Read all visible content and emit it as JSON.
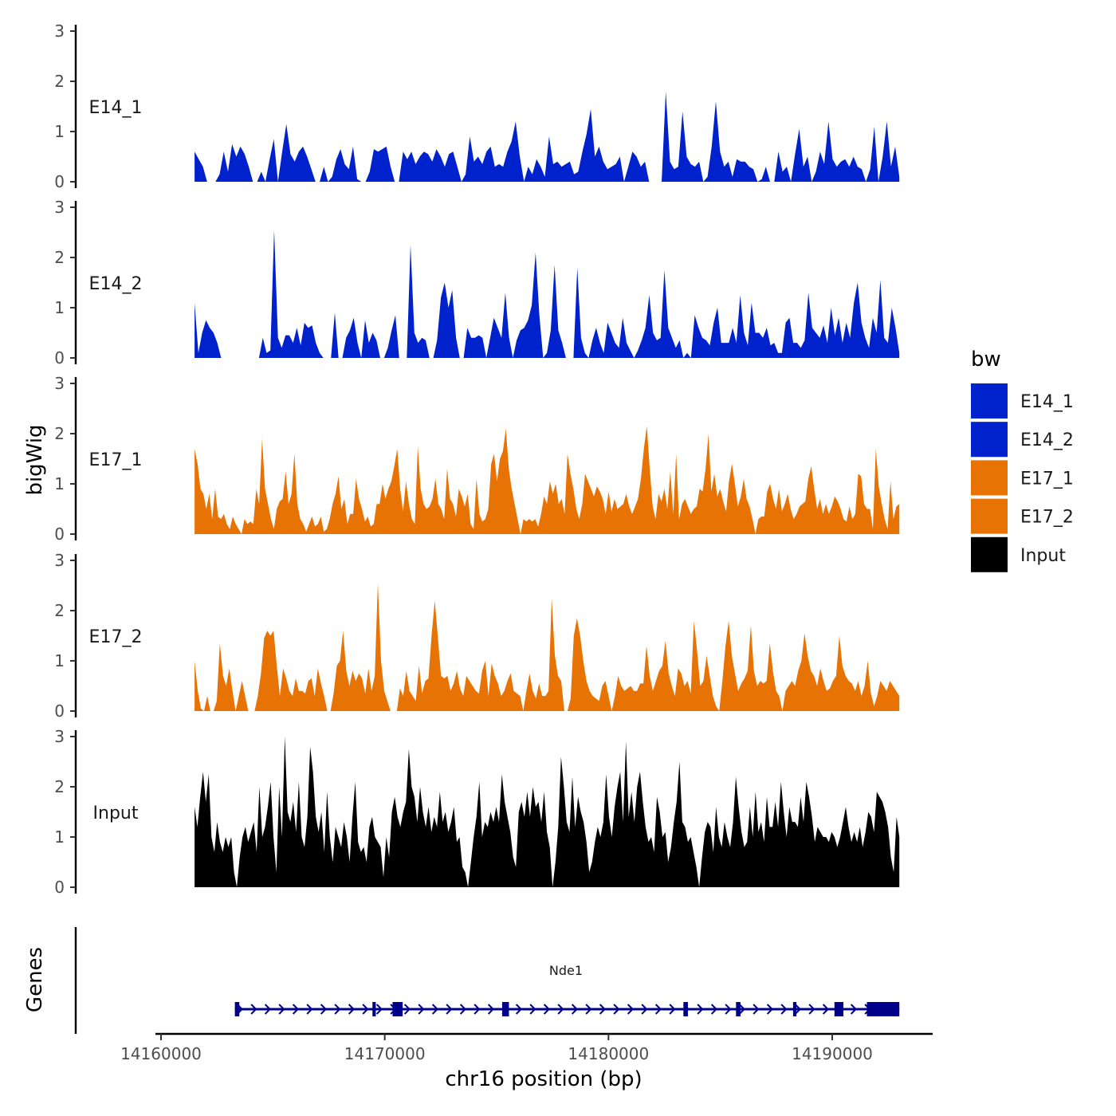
{
  "chart_data": {
    "type": "area",
    "y_axis_title": "bigWig",
    "x_axis_title": "chr16 position (bp)",
    "x_ticks": [
      14160000,
      14170000,
      14180000,
      14190000
    ],
    "x_tick_labels": [
      "14160000",
      "14170000",
      "14180000",
      "14190000"
    ],
    "y_ticks": [
      0,
      1,
      2,
      3
    ],
    "y_tick_labels": [
      "0",
      "1",
      "2",
      "3"
    ],
    "ylim": [
      0,
      3
    ],
    "legend": {
      "title": "bw",
      "entries": [
        {
          "label": "E14_1",
          "color": "#0022CC"
        },
        {
          "label": "E14_2",
          "color": "#0022CC"
        },
        {
          "label": "E17_1",
          "color": "#E87305"
        },
        {
          "label": "E17_2",
          "color": "#E87305"
        },
        {
          "label": "Input",
          "color": "#000000"
        }
      ]
    },
    "x_start": 14161500,
    "x_end": 14193000,
    "series": [
      {
        "name": "E14_1",
        "color": "#0022CC",
        "values": [
          0.6,
          0.45,
          0.3,
          0,
          0,
          0,
          0.15,
          0.6,
          0.2,
          0.75,
          0.5,
          0.7,
          0.55,
          0.3,
          0,
          0,
          0.2,
          0,
          0.45,
          0.85,
          0,
          0.6,
          1.15,
          0.55,
          0.4,
          0.6,
          0.7,
          0.5,
          0.25,
          0,
          0,
          0.3,
          0,
          0.1,
          0.45,
          0.65,
          0.35,
          0.25,
          0.7,
          0.05,
          0,
          0,
          0.2,
          0.65,
          0.6,
          0.65,
          0.7,
          0.3,
          0,
          0,
          0.6,
          0.45,
          0.6,
          0.35,
          0.5,
          0.6,
          0.55,
          0.4,
          0.65,
          0.5,
          0.3,
          0.55,
          0.6,
          0.3,
          0,
          0.15,
          0.9,
          0.4,
          0.5,
          0.35,
          0.6,
          0.7,
          0.3,
          0.35,
          0.3,
          0.6,
          0.8,
          1.2,
          0.5,
          0,
          0.3,
          0.15,
          0.45,
          0.3,
          0.1,
          0.9,
          0.35,
          0.4,
          0.3,
          0.35,
          0.4,
          0.15,
          0.2,
          0.6,
          0.95,
          1.45,
          0.5,
          0.7,
          0.4,
          0.25,
          0.3,
          0.35,
          0.5,
          0,
          0.3,
          0.6,
          0.5,
          0.3,
          0.4,
          0,
          0,
          0,
          0,
          1.8,
          0.4,
          0.25,
          0.3,
          1.4,
          0.5,
          0.35,
          0.3,
          0.4,
          0,
          0.1,
          0.7,
          1.6,
          0.6,
          0.3,
          0.4,
          0.1,
          0.45,
          0.4,
          0.4,
          0.3,
          0.25,
          0,
          0.05,
          0.3,
          0,
          0,
          0.6,
          0.2,
          0.3,
          0,
          0.55,
          1.05,
          0.3,
          0.5,
          0,
          0.2,
          0.6,
          0.35,
          1.2,
          0.45,
          0.3,
          0.4,
          0.45,
          0.3,
          0.5,
          0.3,
          0.25,
          0,
          0.25,
          1.1,
          0,
          0.5,
          1.2,
          0.3,
          0.7,
          0.1
        ]
      },
      {
        "name": "E14_2",
        "color": "#0022CC",
        "values": [
          1.1,
          0.1,
          0.5,
          0.75,
          0.6,
          0.5,
          0.3,
          0,
          0,
          0,
          0,
          0,
          0,
          0,
          0,
          0,
          0,
          0,
          0.4,
          0.1,
          0.15,
          2.55,
          0.4,
          0.2,
          0.45,
          0.45,
          0.3,
          0.6,
          0.25,
          0.7,
          0.6,
          0.65,
          0.3,
          0.1,
          0,
          0,
          0,
          0.9,
          0,
          0,
          0.4,
          0.55,
          0.8,
          0.3,
          0,
          0.75,
          0.3,
          0.5,
          0.35,
          0,
          0,
          0.2,
          0.55,
          0.85,
          0,
          0,
          0,
          2.25,
          0.5,
          0.3,
          0.4,
          0.35,
          0,
          0,
          0.35,
          1.2,
          1.5,
          1.0,
          1.35,
          0.4,
          0,
          0,
          0.6,
          0.4,
          0.4,
          0.45,
          0.4,
          0,
          0.4,
          0.8,
          0.6,
          0.4,
          1.3,
          0.4,
          0,
          0.35,
          0.55,
          0.6,
          0.75,
          1.05,
          2.1,
          0.85,
          0,
          0.1,
          0.55,
          1.85,
          0.55,
          0.3,
          0,
          0,
          0,
          1.8,
          0.4,
          0.1,
          0,
          0.35,
          0.6,
          0.3,
          0.1,
          0.7,
          0.5,
          0.3,
          0.2,
          0.8,
          0.3,
          0.15,
          0,
          0.15,
          0.35,
          0.6,
          1.25,
          0.5,
          0.35,
          0.4,
          1.75,
          0.6,
          0.4,
          0.2,
          0.35,
          0,
          0.1,
          0,
          0.85,
          0.6,
          0.4,
          0.35,
          0.25,
          0.7,
          1.0,
          0.3,
          0.3,
          0.3,
          0.6,
          0.3,
          1.25,
          0.5,
          0.25,
          1.1,
          0.5,
          0.5,
          0.4,
          0.6,
          0.25,
          0.3,
          0.1,
          0.1,
          0.7,
          0.8,
          0.3,
          0.3,
          0.2,
          0.35,
          1.3,
          0.6,
          0.5,
          0.4,
          0.65,
          0.3,
          1.0,
          0.45,
          0.8,
          0.3,
          0.7,
          0.4,
          1.1,
          1.5,
          0.7,
          0.4,
          0.2,
          0.8,
          0.5,
          1.55,
          0.4,
          0.3,
          1.0,
          0.6,
          0.1
        ]
      },
      {
        "name": "E17_1",
        "color": "#E87305",
        "values": [
          1.7,
          1.4,
          0.9,
          0.8,
          0.5,
          0.8,
          0.3,
          0.9,
          0.35,
          0.3,
          0.4,
          0.2,
          0.1,
          0.35,
          0.2,
          0.1,
          0,
          0.3,
          0.2,
          0.25,
          0.2,
          0.9,
          0.6,
          1.9,
          0.9,
          0.6,
          0.3,
          0.1,
          0.5,
          0.65,
          0.7,
          1.25,
          0.6,
          0.8,
          1.6,
          0.6,
          0.3,
          0.2,
          0.05,
          0.2,
          0.35,
          0.15,
          0.2,
          0.35,
          0.05,
          0.1,
          0.3,
          0.6,
          0.8,
          1.15,
          0.5,
          0.7,
          0.2,
          0.4,
          0.4,
          1.1,
          0.7,
          0.5,
          0.25,
          0.35,
          0.15,
          0.2,
          0.6,
          0.6,
          1.0,
          0.7,
          0.9,
          1.05,
          1.35,
          1.7,
          0.9,
          0.45,
          1.05,
          0.6,
          0.3,
          0.2,
          1.75,
          0.9,
          0.6,
          0.5,
          0.55,
          0.7,
          1.1,
          0.6,
          0.5,
          0.3,
          1.3,
          0.7,
          0.6,
          0.35,
          0.9,
          0.75,
          0.55,
          0.8,
          0.2,
          0.1,
          1.1,
          0.4,
          0.25,
          0.3,
          0.5,
          1.4,
          1.6,
          1.05,
          1.5,
          1.65,
          2.1,
          1.3,
          0.9,
          0.6,
          0.3,
          0,
          0.3,
          0.25,
          0.3,
          0.25,
          0.3,
          0.15,
          0.4,
          0.75,
          0.6,
          1.05,
          0.8,
          1.0,
          0.6,
          0.7,
          0.4,
          1.6,
          1.2,
          0.9,
          0.5,
          0.3,
          0.6,
          1.2,
          1.05,
          0.9,
          0.75,
          0.95,
          0.85,
          0.7,
          0.4,
          0.85,
          0.45,
          0.7,
          0.5,
          0.55,
          0.6,
          0.8,
          0.55,
          0.4,
          0.55,
          0.7,
          1.1,
          1.7,
          2.15,
          1.3,
          0.55,
          0.3,
          0.8,
          0.65,
          0.9,
          0.5,
          1.25,
          0.4,
          1.6,
          0.3,
          0.6,
          0.7,
          0.55,
          0.4,
          0.5,
          0.55,
          0.9,
          0.85,
          1.3,
          2.0,
          0.85,
          1.2,
          0.75,
          0.9,
          0.65,
          0.45,
          1.05,
          1.4,
          1.0,
          0.55,
          0.75,
          1.1,
          0.7,
          0.55,
          0.3,
          0,
          0.3,
          0.35,
          0.35,
          0.85,
          1.0,
          0.7,
          0.5,
          0.9,
          0.45,
          0.6,
          0.8,
          0.5,
          0.3,
          0.4,
          0.55,
          0.6,
          0.65,
          1.1,
          1.35,
          0.9,
          0.5,
          0.7,
          0.4,
          0.6,
          0.4,
          0.55,
          0.75,
          0.65,
          0.5,
          0.3,
          0.25,
          0.55,
          0.3,
          0.4,
          1.2,
          1.15,
          0.6,
          0.5,
          0.5,
          0.1,
          1.7,
          0.95,
          0.6,
          0.3,
          0.1,
          1.05,
          0.3,
          0.55,
          0.6
        ]
      },
      {
        "name": "E17_2",
        "color": "#E87305",
        "values": [
          1.0,
          0.4,
          0.05,
          0,
          0.3,
          0,
          0,
          0.2,
          1.35,
          0.7,
          0.5,
          0.85,
          0.4,
          0,
          0.3,
          0.6,
          0.3,
          0,
          0,
          0,
          0.3,
          0.75,
          1.45,
          1.6,
          1.5,
          1.6,
          0.9,
          0.3,
          0.85,
          0.65,
          0.4,
          0.3,
          0.65,
          0.4,
          0.4,
          0.35,
          0.6,
          0.65,
          0.3,
          0.85,
          0.55,
          0.3,
          0,
          0,
          0.35,
          0.9,
          1.0,
          1.6,
          0.8,
          0.5,
          0.8,
          0.6,
          0.75,
          0.65,
          0.35,
          0.85,
          0.4,
          0.7,
          2.55,
          1.0,
          0.4,
          0.2,
          0,
          0,
          0,
          0.45,
          0.3,
          0.8,
          0.4,
          0.3,
          0.2,
          0.9,
          0.35,
          0.6,
          0.65,
          1.5,
          2.2,
          1.45,
          0.7,
          0.65,
          0.7,
          0.4,
          0.55,
          0.8,
          0.45,
          0.3,
          0.7,
          0.6,
          0.5,
          0.4,
          0.35,
          0.8,
          1.0,
          0.3,
          0.95,
          0.7,
          0.55,
          0.3,
          0.4,
          0.6,
          0.75,
          0.4,
          0.35,
          0.3,
          0,
          0.4,
          0.75,
          0.4,
          0.25,
          0.55,
          0.3,
          0.3,
          0.4,
          2.25,
          1.1,
          0.7,
          0.6,
          0,
          0,
          0.25,
          1.5,
          1.85,
          1.5,
          1.0,
          0.6,
          0.4,
          0.3,
          0.25,
          0.2,
          0.5,
          0.6,
          0.3,
          0,
          0.3,
          0.7,
          0.5,
          0.4,
          0.45,
          0.5,
          0.4,
          0.4,
          0.55,
          0.55,
          1.3,
          0.7,
          0.4,
          0.6,
          0.8,
          0.9,
          1.4,
          0.75,
          0.5,
          0.3,
          0.85,
          0.75,
          0.5,
          0.6,
          0.35,
          1.8,
          1.2,
          0.5,
          0.6,
          1.1,
          0.7,
          0.3,
          0.1,
          0,
          0.6,
          1.3,
          1.8,
          1.1,
          0.75,
          0.4,
          0.55,
          0.65,
          0.8,
          1.7,
          0.8,
          0.5,
          0.6,
          0.55,
          0.6,
          1.35,
          0.8,
          0.4,
          0.3,
          0,
          0.4,
          0.5,
          0.6,
          0.5,
          0.8,
          1.0,
          1.55,
          1.1,
          0.8,
          0.7,
          0.5,
          0.85,
          0.6,
          0.4,
          0.45,
          0.6,
          0.7,
          1.5,
          0.9,
          0.7,
          0.6,
          0.55,
          0.4,
          0.6,
          0.3,
          0.5,
          1.0,
          0.35,
          0.1,
          0.3,
          0.6,
          0.5,
          0.4,
          0.6,
          0.5,
          0.4,
          0.3
        ]
      },
      {
        "name": "Input",
        "color": "#000000",
        "values": [
          1.6,
          1.2,
          1.8,
          2.3,
          1.7,
          2.25,
          1.0,
          0.7,
          1.3,
          0.9,
          0.7,
          1.0,
          0.8,
          1.0,
          0.3,
          0,
          0.6,
          1.0,
          1.2,
          0.9,
          1.1,
          1.3,
          0.7,
          2.0,
          1.0,
          1.2,
          1.6,
          2.1,
          1.0,
          0.3,
          2.0,
          1.0,
          3.0,
          1.5,
          1.3,
          1.7,
          1.1,
          2.1,
          1.0,
          0.8,
          1.4,
          2.8,
          2.3,
          1.4,
          1.1,
          1.5,
          0.7,
          1.9,
          1.0,
          0.5,
          1.2,
          1.0,
          0.8,
          1.3,
          1.0,
          0.5,
          1.4,
          2.1,
          0.9,
          0.7,
          0.8,
          0.5,
          1.2,
          1.4,
          1.0,
          0.9,
          0.8,
          0.2,
          1.0,
          0.6,
          1.5,
          1.8,
          1.4,
          1.2,
          1.5,
          1.7,
          2.75,
          2.0,
          1.8,
          1.3,
          2.0,
          1.5,
          1.2,
          1.6,
          1.1,
          1.4,
          1.2,
          1.9,
          1.3,
          1.5,
          1.1,
          1.3,
          1.6,
          0.9,
          1.0,
          0.4,
          0.3,
          0,
          0.5,
          1.0,
          1.4,
          2.1,
          1.0,
          1.3,
          1.2,
          1.5,
          1.3,
          1.6,
          1.3,
          2.25,
          1.7,
          1.4,
          1.1,
          0.6,
          0.4,
          1.5,
          1.7,
          1.4,
          1.9,
          1.4,
          2.0,
          1.6,
          1.7,
          1.3,
          1.9,
          1.1,
          0.8,
          0,
          0.5,
          1.2,
          2.6,
          2.0,
          1.3,
          1.1,
          2.2,
          1.2,
          1.8,
          1.5,
          1.3,
          0.9,
          0.3,
          0.5,
          0.9,
          1.2,
          1.0,
          1.3,
          2.25,
          1.4,
          1.0,
          1.6,
          2.0,
          2.3,
          1.3,
          2.9,
          1.4,
          1.9,
          1.3,
          2.0,
          2.3,
          1.7,
          1.2,
          0.9,
          1.0,
          0.7,
          1.8,
          1.5,
          1.0,
          1.1,
          0.5,
          0.8,
          1.3,
          1.7,
          2.5,
          1.3,
          1.2,
          0.9,
          1.0,
          0.7,
          0.4,
          0,
          0.6,
          1.1,
          1.3,
          1.2,
          0.7,
          1.6,
          1.0,
          0.8,
          1.3,
          1.0,
          0.8,
          1.3,
          2.2,
          1.6,
          1.1,
          0.8,
          0.9,
          1.6,
          1.0,
          1.9,
          1.1,
          1.3,
          0.9,
          1.8,
          1.2,
          1.2,
          1.7,
          1.2,
          2.1,
          1.5,
          1.0,
          1.6,
          1.3,
          1.3,
          1.2,
          1.8,
          1.3,
          2.1,
          1.8,
          1.4,
          0.9,
          1.2,
          1.1,
          1.0,
          1.0,
          0.9,
          1.1,
          1.0,
          0.8,
          1.0,
          1.3,
          1.6,
          1.2,
          0.9,
          1.1,
          0.9,
          1.2,
          0.8,
          1.1,
          1.5,
          1.4,
          1.1,
          1.9,
          1.8,
          1.7,
          1.5,
          1.2,
          0.6,
          0.3,
          1.4,
          1.0
        ]
      }
    ],
    "genes_track": {
      "title": "Genes",
      "gene": {
        "name": "Nde1",
        "start": 14163300,
        "end": 14193000,
        "strand": "+",
        "color": "#00008B",
        "exons": [
          [
            14163300,
            14163500
          ],
          [
            14169450,
            14169600
          ],
          [
            14170350,
            14170800
          ],
          [
            14175250,
            14175550
          ],
          [
            14183350,
            14183550
          ],
          [
            14185700,
            14185900
          ],
          [
            14188250,
            14188400
          ],
          [
            14190100,
            14190500
          ],
          [
            14191550,
            14193000
          ]
        ]
      }
    }
  }
}
